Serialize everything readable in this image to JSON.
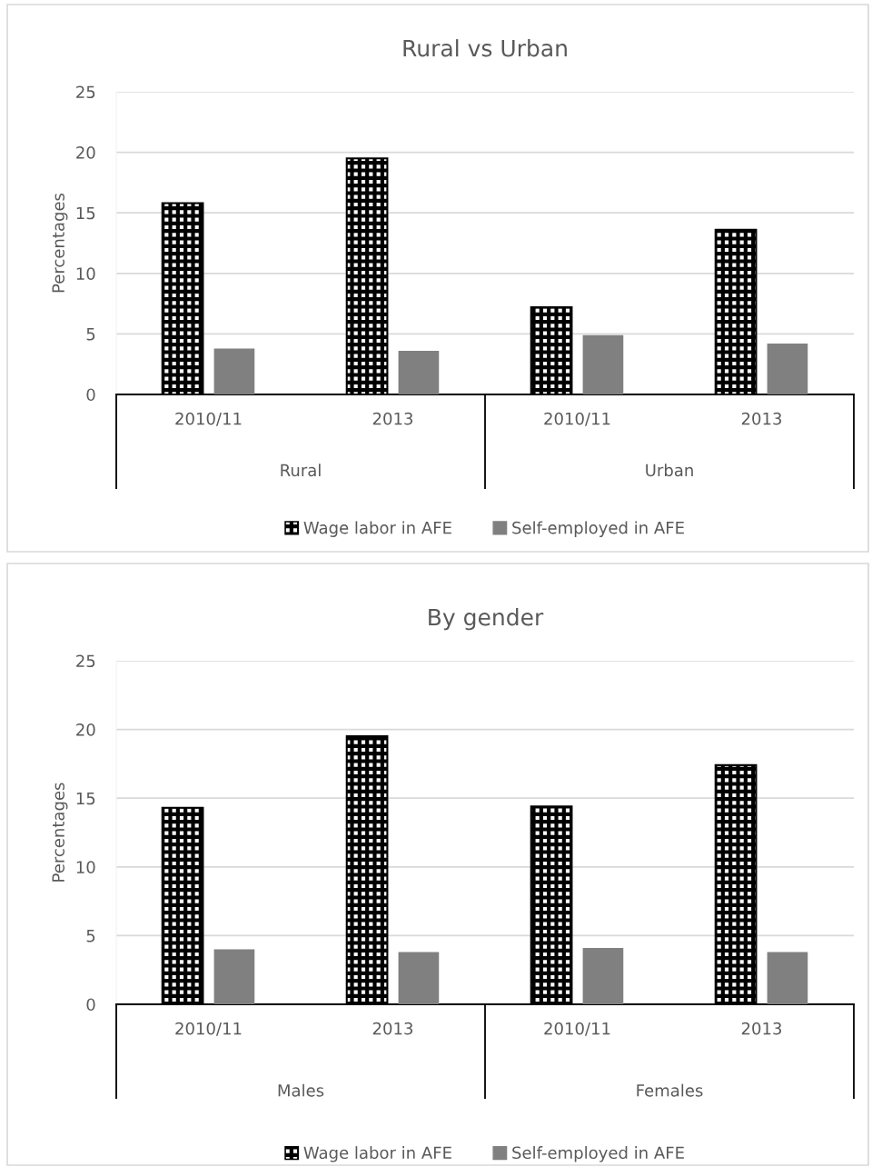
{
  "chart_data": [
    {
      "type": "bar",
      "title": "Rural vs Urban",
      "ylabel": "Percentages",
      "categories": [
        "2010/11",
        "2013",
        "2010/11",
        "2013"
      ],
      "annotations": [
        "Rural",
        "Urban"
      ],
      "ylim": [
        0,
        25
      ],
      "yticks": [
        0,
        5,
        10,
        15,
        20,
        25
      ],
      "grid": "y",
      "legend": "bottom",
      "series": [
        {
          "name": "Wage labor in AFE",
          "color": "#000000",
          "values": [
            15.8,
            19.5,
            7.2,
            13.6
          ]
        },
        {
          "name": "Self-employed in AFE",
          "color": "#808080",
          "values": [
            3.8,
            3.6,
            4.9,
            4.2
          ]
        }
      ]
    },
    {
      "type": "bar",
      "title": "By gender",
      "ylabel": "Percentages",
      "categories": [
        "2010/11",
        "2013",
        "2010/11",
        "2013"
      ],
      "annotations": [
        "Males",
        "Females"
      ],
      "ylim": [
        0,
        25
      ],
      "yticks": [
        0,
        5,
        10,
        15,
        20,
        25
      ],
      "grid": "y",
      "legend": "bottom",
      "series": [
        {
          "name": "Wage labor in AFE",
          "color": "#000000",
          "values": [
            14.3,
            19.5,
            14.4,
            17.4
          ]
        },
        {
          "name": "Self-employed in AFE",
          "color": "#808080",
          "values": [
            4.0,
            3.8,
            4.1,
            3.8
          ]
        }
      ]
    }
  ]
}
